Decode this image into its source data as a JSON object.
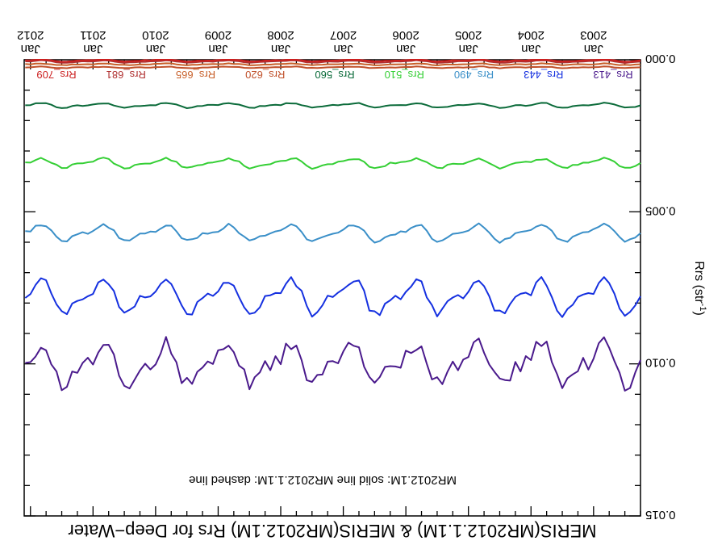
{
  "chart_data": {
    "type": "line",
    "title": "MERIS(MR2012.1.1M) & MERIS(MR2012.1M)  Rrs for Deep−Water",
    "ylabel": "Rrs (str",
    "ylabel_sup": "-1",
    "annotation": "MR2012.1M: solid line   MR2012.1.1M: dashed line",
    "rotation_deg": 180,
    "ylim": [
      0.0,
      0.015
    ],
    "xlim": [
      2002.25,
      2012.1
    ],
    "yticks": [
      {
        "value": 0.0,
        "label": "0.000"
      },
      {
        "value": 0.005,
        "label": "0.005"
      },
      {
        "value": 0.01,
        "label": "0.010"
      },
      {
        "value": 0.015,
        "label": "0.015"
      }
    ],
    "xticks": [
      {
        "value": 2003,
        "label_top": "Jan",
        "label_bottom": "2003"
      },
      {
        "value": 2004,
        "label_top": "Jan",
        "label_bottom": "2004"
      },
      {
        "value": 2005,
        "label_top": "Jan",
        "label_bottom": "2005"
      },
      {
        "value": 2006,
        "label_top": "Jan",
        "label_bottom": "2006"
      },
      {
        "value": 2007,
        "label_top": "Jan",
        "label_bottom": "2007"
      },
      {
        "value": 2008,
        "label_top": "Jan",
        "label_bottom": "2008"
      },
      {
        "value": 2009,
        "label_top": "Jan",
        "label_bottom": "2009"
      },
      {
        "value": 2010,
        "label_top": "Jan",
        "label_bottom": "2010"
      },
      {
        "value": 2011,
        "label_top": "Jan",
        "label_bottom": "2011"
      },
      {
        "value": 2012,
        "label_top": "Jan",
        "label_bottom": "2012"
      }
    ],
    "series": [
      {
        "name": "Rrs_413",
        "color": "#4a1a8c",
        "mean": 0.01,
        "amplitude": 0.00055,
        "noise": 0.00025
      },
      {
        "name": "Rrs_443",
        "color": "#1530e0",
        "mean": 0.0078,
        "amplitude": 0.00045,
        "noise": 0.00012
      },
      {
        "name": "Rrs_490",
        "color": "#3a8fc8",
        "mean": 0.0057,
        "amplitude": 0.00022,
        "noise": 5e-05
      },
      {
        "name": "Rrs_510",
        "color": "#35cf35",
        "mean": 0.0034,
        "amplitude": 0.00012,
        "noise": 4e-05
      },
      {
        "name": "Rrs_560",
        "color": "#0b6b3a",
        "mean": 0.0015,
        "amplitude": 6e-05,
        "noise": 2e-05
      },
      {
        "name": "Rrs_620",
        "color": "#c0502a",
        "mean": 0.00025,
        "amplitude": 2e-05,
        "noise": 1e-05
      },
      {
        "name": "Rrs_665",
        "color": "#c8602a",
        "mean": 0.00015,
        "amplitude": 2e-05,
        "noise": 1e-05
      },
      {
        "name": "Rrs_681",
        "color": "#b03030",
        "mean": 6e-05,
        "amplitude": 3e-05,
        "noise": 1e-05
      },
      {
        "name": "Rrs_709",
        "color": "#cc2020",
        "mean": 2e-05,
        "amplitude": 3e-05,
        "noise": 1e-05
      }
    ]
  }
}
